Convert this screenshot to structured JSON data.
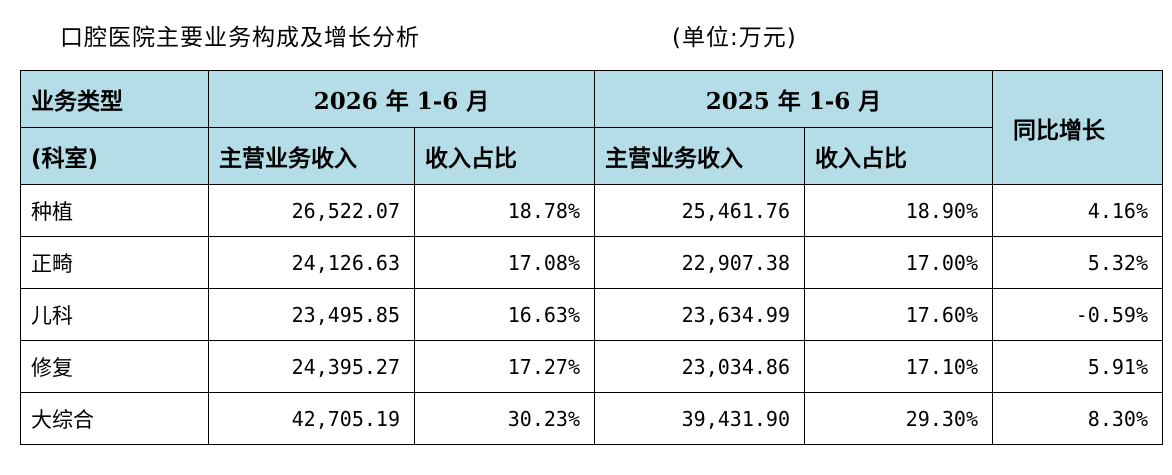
{
  "title": "口腔医院主要业务构成及增长分析",
  "unit": "(单位:万元)",
  "header": {
    "type_line1": "业务类型",
    "type_line2": "(科室)",
    "period_2026": "2026 年 1-6 月",
    "period_2025": "2025 年 1-6 月",
    "growth": "同比增长",
    "revenue": "主营业务收入",
    "share": "收入占比"
  },
  "rows": [
    {
      "name": "种植",
      "rev2026": "26,522.07",
      "share2026": "18.78%",
      "rev2025": "25,461.76",
      "share2025": "18.90%",
      "growth": "4.16%"
    },
    {
      "name": "正畸",
      "rev2026": "24,126.63",
      "share2026": "17.08%",
      "rev2025": "22,907.38",
      "share2025": "17.00%",
      "growth": "5.32%"
    },
    {
      "name": "儿科",
      "rev2026": "23,495.85",
      "share2026": "16.63%",
      "rev2025": "23,634.99",
      "share2025": "17.60%",
      "growth": "-0.59%"
    },
    {
      "name": "修复",
      "rev2026": "24,395.27",
      "share2026": "17.27%",
      "rev2025": "23,034.86",
      "share2025": "17.10%",
      "growth": "5.91%"
    },
    {
      "name": "大综合",
      "rev2026": "42,705.19",
      "share2026": "30.23%",
      "rev2025": "39,431.90",
      "share2025": "29.30%",
      "growth": "8.30%"
    }
  ]
}
